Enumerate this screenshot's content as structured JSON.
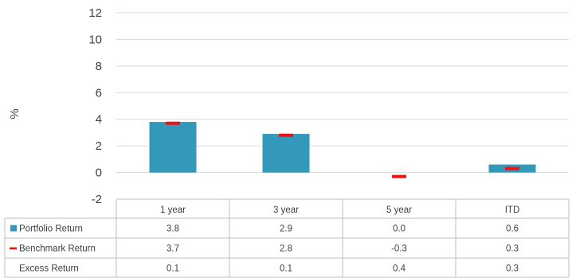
{
  "chart_data": {
    "type": "bar",
    "ylabel": "%",
    "ylim": [
      -2,
      12
    ],
    "yticks": [
      -2,
      0,
      2,
      4,
      6,
      8,
      10,
      12
    ],
    "grid": true,
    "categories": [
      "1 year",
      "3 year",
      "5 year",
      "ITD"
    ],
    "series": [
      {
        "name": "Portfolio Return",
        "mark": "bar",
        "color": "#3399bb",
        "values": [
          3.8,
          2.9,
          0.0,
          0.6
        ]
      },
      {
        "name": "Benchmark Return",
        "mark": "dash",
        "color": "#e8141c",
        "values": [
          3.7,
          2.8,
          -0.3,
          0.3
        ]
      }
    ],
    "table": {
      "rows": [
        {
          "label": "Portfolio Return",
          "marker": "square",
          "values": [
            "3.8",
            "2.9",
            "0.0",
            "0.6"
          ]
        },
        {
          "label": "Benchmark Return",
          "marker": "dash",
          "values": [
            "3.7",
            "2.8",
            "-0.3",
            "0.3"
          ]
        },
        {
          "label": "Excess Return",
          "marker": "none",
          "values": [
            "0.1",
            "0.1",
            "0.4",
            "0.3"
          ]
        }
      ]
    }
  }
}
